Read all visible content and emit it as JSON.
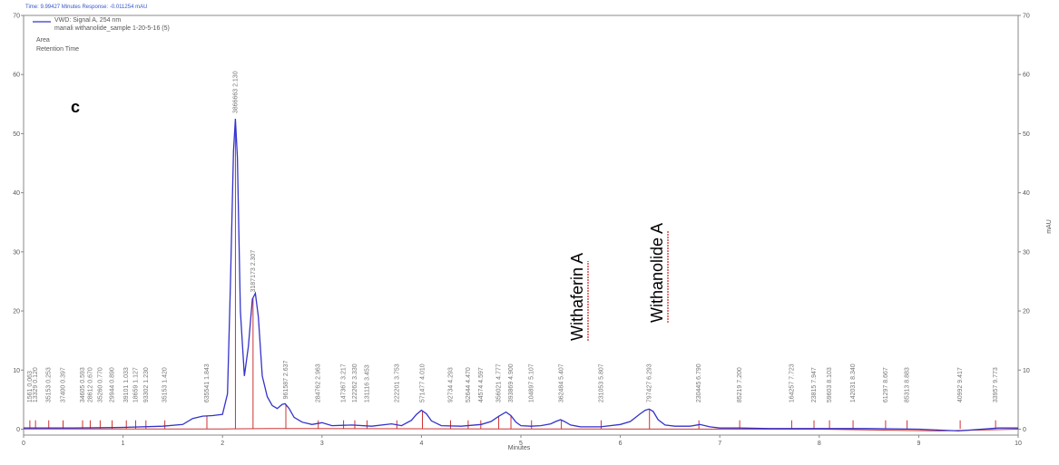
{
  "header": {
    "text": "Time: 9.99427 Minutes   Response: -0.011254 mAU"
  },
  "panel_label": "c",
  "legend": {
    "line1": "VWD: Signal A, 254 nm",
    "line2": "manali withanolide_sample 1-20-5-16 (5)",
    "line3": "Area",
    "line4": "Retention Time"
  },
  "annotations": {
    "withaferin": "Withaferin A",
    "withanolide": "Withanolide A"
  },
  "colors": {
    "trace": "#3333cc",
    "markers": "#cc3333",
    "baseline": "#cc3333",
    "axis": "#888888"
  },
  "chart_data": {
    "type": "line",
    "xlabel": "Minutes",
    "ylabel": "mAU",
    "xlim": [
      0,
      10
    ],
    "ylim": [
      -1,
      70
    ],
    "x_ticks": [
      0,
      1,
      2,
      3,
      4,
      5,
      6,
      7,
      8,
      9,
      10
    ],
    "y_ticks": [
      0,
      10,
      20,
      30,
      40,
      50,
      60,
      70
    ],
    "series": [
      {
        "name": "VWD: Signal A, 254 nm",
        "x": [
          0.0,
          0.5,
          1.0,
          1.4,
          1.6,
          1.7,
          1.8,
          1.9,
          2.0,
          2.05,
          2.08,
          2.11,
          2.13,
          2.15,
          2.18,
          2.22,
          2.26,
          2.3,
          2.33,
          2.36,
          2.4,
          2.45,
          2.5,
          2.55,
          2.6,
          2.63,
          2.67,
          2.72,
          2.8,
          2.9,
          3.0,
          3.1,
          3.3,
          3.5,
          3.7,
          3.8,
          3.9,
          3.95,
          4.0,
          4.05,
          4.1,
          4.2,
          4.4,
          4.6,
          4.7,
          4.78,
          4.85,
          4.9,
          4.95,
          5.0,
          5.1,
          5.2,
          5.3,
          5.35,
          5.4,
          5.45,
          5.5,
          5.6,
          5.8,
          6.0,
          6.1,
          6.2,
          6.25,
          6.29,
          6.33,
          6.38,
          6.45,
          6.55,
          6.7,
          6.8,
          6.9,
          7.0,
          7.2,
          7.5,
          8.0,
          8.5,
          9.0,
          9.4,
          9.8,
          10.0
        ],
        "y": [
          0.2,
          0.2,
          0.3,
          0.5,
          0.8,
          1.8,
          2.2,
          2.3,
          2.5,
          6.0,
          25.0,
          47.0,
          52.5,
          46.0,
          20.0,
          9.0,
          14.0,
          22.0,
          23.0,
          19.0,
          9.0,
          5.5,
          4.0,
          3.5,
          4.2,
          4.3,
          3.5,
          2.0,
          1.2,
          0.8,
          1.1,
          0.6,
          0.7,
          0.5,
          0.9,
          0.6,
          1.5,
          2.5,
          3.2,
          2.6,
          1.4,
          0.6,
          0.5,
          0.8,
          1.3,
          2.2,
          2.9,
          2.3,
          1.2,
          0.6,
          0.5,
          0.6,
          0.9,
          1.3,
          1.6,
          1.2,
          0.7,
          0.4,
          0.4,
          0.8,
          1.3,
          2.6,
          3.2,
          3.4,
          3.0,
          1.6,
          0.7,
          0.5,
          0.5,
          0.8,
          0.4,
          0.2,
          0.2,
          0.1,
          0.1,
          0.1,
          0.0,
          -0.3,
          0.2,
          0.2
        ]
      }
    ],
    "peaks": [
      {
        "area": "1561",
        "rt": "0.063"
      },
      {
        "area": "13329",
        "rt": "0.120"
      },
      {
        "area": "35153",
        "rt": "0.253"
      },
      {
        "area": "37400",
        "rt": "0.397"
      },
      {
        "area": "34605",
        "rt": "0.593"
      },
      {
        "area": "28612",
        "rt": "0.670"
      },
      {
        "area": "35260",
        "rt": "0.770"
      },
      {
        "area": "29944",
        "rt": "0.890"
      },
      {
        "area": "39101",
        "rt": "1.033"
      },
      {
        "area": "18659",
        "rt": "1.127"
      },
      {
        "area": "93302",
        "rt": "1.230"
      },
      {
        "area": "35153",
        "rt": "1.420"
      },
      {
        "area": "635541",
        "rt": "1.843"
      },
      {
        "area": "3866663",
        "rt": "2.130"
      },
      {
        "area": "3187173",
        "rt": "2.307"
      },
      {
        "area": "961587",
        "rt": "2.637"
      },
      {
        "area": "284762",
        "rt": "2.963"
      },
      {
        "area": "147367",
        "rt": "3.217"
      },
      {
        "area": "122262",
        "rt": "3.330"
      },
      {
        "area": "131116",
        "rt": "3.453"
      },
      {
        "area": "222201",
        "rt": "3.753"
      },
      {
        "area": "571477",
        "rt": "4.010"
      },
      {
        "area": "92734",
        "rt": "4.293"
      },
      {
        "area": "52644",
        "rt": "4.470"
      },
      {
        "area": "44574",
        "rt": "4.597"
      },
      {
        "area": "356021",
        "rt": "4.777"
      },
      {
        "area": "393869",
        "rt": "4.900"
      },
      {
        "area": "104897",
        "rt": "5.107"
      },
      {
        "area": "362484",
        "rt": "5.407"
      },
      {
        "area": "231053",
        "rt": "5.807"
      },
      {
        "area": "797427",
        "rt": "6.293"
      },
      {
        "area": "230445",
        "rt": "6.790"
      },
      {
        "area": "85219",
        "rt": "7.200"
      },
      {
        "area": "164257",
        "rt": "7.723"
      },
      {
        "area": "23815",
        "rt": "7.947"
      },
      {
        "area": "59603",
        "rt": "8.103"
      },
      {
        "area": "142031",
        "rt": "8.340"
      },
      {
        "area": "61297",
        "rt": "8.667"
      },
      {
        "area": "85313",
        "rt": "8.883"
      },
      {
        "area": "40992",
        "rt": "9.417"
      },
      {
        "area": "33957",
        "rt": "9.773"
      }
    ]
  }
}
